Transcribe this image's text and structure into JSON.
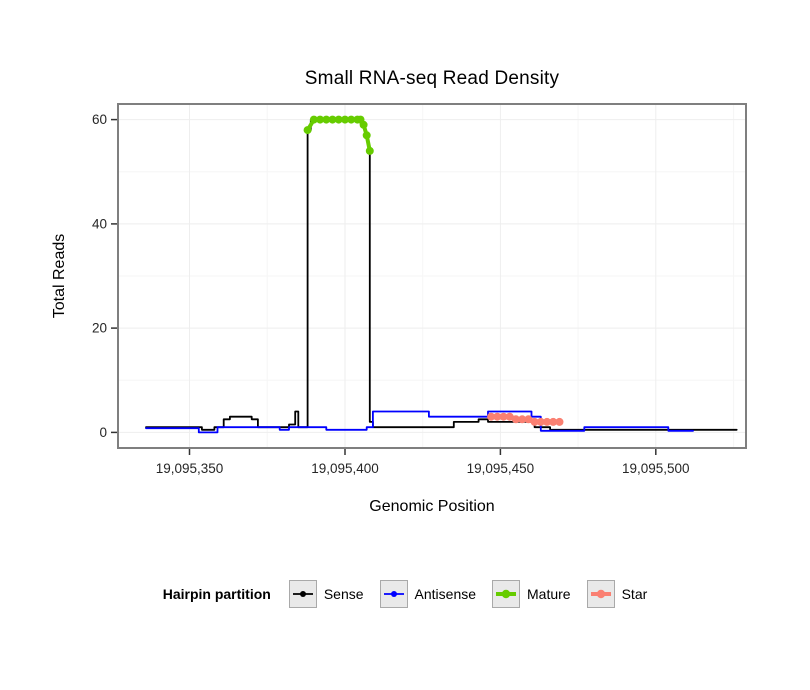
{
  "chart_data": {
    "type": "line",
    "title": "Small RNA-seq Read Density",
    "xlabel": "Genomic Position",
    "ylabel": "Total Reads",
    "legend_title": "Hairpin partition",
    "legend_position": "bottom",
    "grid": true,
    "xlim": [
      19095327,
      19095529
    ],
    "ylim": [
      -3,
      63
    ],
    "x_ticks": [
      {
        "value": 19095350,
        "label": "19,095,350"
      },
      {
        "value": 19095400,
        "label": "19,095,400"
      },
      {
        "value": 19095450,
        "label": "19,095,450"
      },
      {
        "value": 19095500,
        "label": "19,095,500"
      }
    ],
    "y_ticks": [
      {
        "value": 0,
        "label": "0"
      },
      {
        "value": 20,
        "label": "20"
      },
      {
        "value": 40,
        "label": "40"
      },
      {
        "value": 60,
        "label": "60"
      }
    ],
    "x_minor": [
      19095375,
      19095425,
      19095475,
      19095525
    ],
    "y_minor": [
      10,
      30,
      50
    ],
    "series": [
      {
        "name": "Sense",
        "color": "#000000",
        "width": 1.8,
        "marker_size": 0,
        "points": [
          [
            19095336,
            1
          ],
          [
            19095354,
            1
          ],
          [
            19095354,
            0.5
          ],
          [
            19095358,
            0.5
          ],
          [
            19095358,
            1
          ],
          [
            19095361,
            1
          ],
          [
            19095361,
            2.5
          ],
          [
            19095363,
            2.5
          ],
          [
            19095363,
            3
          ],
          [
            19095370,
            3
          ],
          [
            19095370,
            2.5
          ],
          [
            19095372,
            2.5
          ],
          [
            19095372,
            1
          ],
          [
            19095382,
            1
          ],
          [
            19095382,
            1.5
          ],
          [
            19095384,
            1.5
          ],
          [
            19095384,
            4
          ],
          [
            19095385,
            4
          ],
          [
            19095385,
            1
          ],
          [
            19095388,
            1
          ],
          [
            19095388,
            58
          ],
          [
            19095389,
            58
          ],
          [
            19095389,
            60
          ],
          [
            19095405,
            60
          ],
          [
            19095406,
            59
          ],
          [
            19095407,
            57
          ],
          [
            19095408,
            54
          ],
          [
            19095408,
            2
          ],
          [
            19095409,
            2
          ],
          [
            19095409,
            1
          ],
          [
            19095435,
            1
          ],
          [
            19095435,
            2
          ],
          [
            19095443,
            2
          ],
          [
            19095443,
            2.5
          ],
          [
            19095446,
            2.5
          ],
          [
            19095446,
            2
          ],
          [
            19095461,
            2
          ],
          [
            19095461,
            1
          ],
          [
            19095466,
            1
          ],
          [
            19095466,
            0.5
          ],
          [
            19095526,
            0.5
          ]
        ]
      },
      {
        "name": "Antisense",
        "color": "#0000ff",
        "width": 1.8,
        "marker_size": 0,
        "points": [
          [
            19095336,
            0.8
          ],
          [
            19095353,
            0.8
          ],
          [
            19095353,
            0
          ],
          [
            19095359,
            0
          ],
          [
            19095359,
            1
          ],
          [
            19095379,
            1
          ],
          [
            19095379,
            0.5
          ],
          [
            19095382,
            0.5
          ],
          [
            19095382,
            1
          ],
          [
            19095394,
            1
          ],
          [
            19095394,
            0.5
          ],
          [
            19095407,
            0.5
          ],
          [
            19095407,
            1
          ],
          [
            19095409,
            1
          ],
          [
            19095409,
            4
          ],
          [
            19095427,
            4
          ],
          [
            19095427,
            3
          ],
          [
            19095446,
            3
          ],
          [
            19095446,
            4
          ],
          [
            19095460,
            4
          ],
          [
            19095460,
            3
          ],
          [
            19095463,
            3
          ],
          [
            19095463,
            0.3
          ],
          [
            19095477,
            0.3
          ],
          [
            19095477,
            1
          ],
          [
            19095504,
            1
          ],
          [
            19095504,
            0.3
          ],
          [
            19095512,
            0.3
          ]
        ]
      },
      {
        "name": "Mature",
        "color": "#66cc00",
        "width": 4,
        "marker_size": 4,
        "points": [
          [
            19095388,
            58
          ],
          [
            19095390,
            60
          ],
          [
            19095392,
            60
          ],
          [
            19095394,
            60
          ],
          [
            19095396,
            60
          ],
          [
            19095398,
            60
          ],
          [
            19095400,
            60
          ],
          [
            19095402,
            60
          ],
          [
            19095404,
            60
          ],
          [
            19095405,
            60
          ],
          [
            19095406,
            59
          ],
          [
            19095407,
            57
          ],
          [
            19095408,
            54
          ]
        ]
      },
      {
        "name": "Star",
        "color": "#fa8072",
        "width": 5,
        "marker_size": 4,
        "points": [
          [
            19095447,
            3
          ],
          [
            19095449,
            3
          ],
          [
            19095451,
            3
          ],
          [
            19095453,
            3
          ],
          [
            19095455,
            2.5
          ],
          [
            19095457,
            2.5
          ],
          [
            19095459,
            2.5
          ],
          [
            19095461,
            2
          ],
          [
            19095463,
            2
          ],
          [
            19095465,
            2
          ],
          [
            19095467,
            2
          ],
          [
            19095469,
            2
          ]
        ]
      }
    ]
  }
}
